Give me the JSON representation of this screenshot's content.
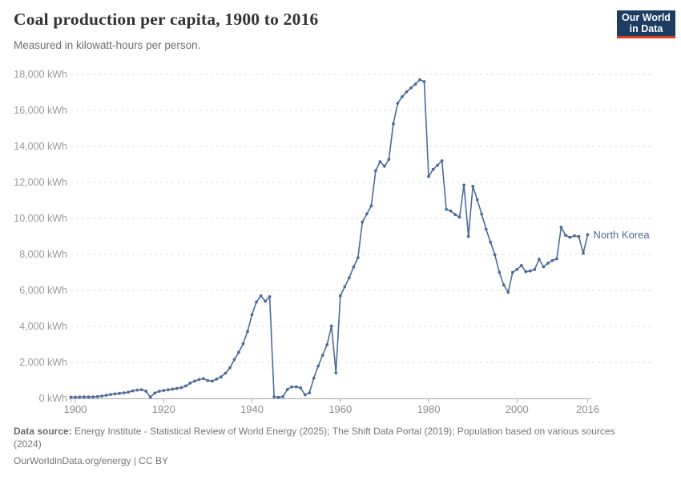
{
  "header": {
    "title": "Coal production per capita, 1900 to 2016",
    "subtitle": "Measured in kilowatt-hours per person.",
    "logo": {
      "line1": "Our World",
      "line2": "in Data",
      "bg": "#1d3d63",
      "accent": "#dc3e26"
    }
  },
  "chart_data": {
    "type": "line",
    "title": "Coal production per capita, 1900 to 2016",
    "subtitle": "Measured in kilowatt-hours per person.",
    "grid": "horizontal-dashed",
    "legend_position": "end-of-line-label",
    "end_label": "North Korea",
    "xlim": [
      1899,
      2016
    ],
    "ylim": [
      0,
      18000
    ],
    "x_ticks": [
      1900,
      1920,
      1940,
      1960,
      1980,
      2000,
      2016
    ],
    "y_ticks": [
      0,
      2000,
      4000,
      6000,
      8000,
      10000,
      12000,
      14000,
      16000,
      18000
    ],
    "y_suffix": " kWh",
    "xlabel": "",
    "ylabel": "",
    "series": [
      {
        "name": "North Korea",
        "color": "#4c6a9c",
        "x": [
          1899,
          1900,
          1901,
          1902,
          1903,
          1904,
          1905,
          1906,
          1907,
          1908,
          1909,
          1910,
          1911,
          1912,
          1913,
          1914,
          1915,
          1916,
          1917,
          1918,
          1919,
          1920,
          1921,
          1922,
          1923,
          1924,
          1925,
          1926,
          1927,
          1928,
          1929,
          1930,
          1931,
          1932,
          1933,
          1934,
          1935,
          1936,
          1937,
          1938,
          1939,
          1940,
          1941,
          1942,
          1943,
          1944,
          1945,
          1946,
          1947,
          1948,
          1949,
          1950,
          1951,
          1952,
          1953,
          1954,
          1955,
          1956,
          1957,
          1958,
          1959,
          1960,
          1961,
          1962,
          1963,
          1964,
          1965,
          1966,
          1967,
          1968,
          1969,
          1970,
          1971,
          1972,
          1973,
          1974,
          1975,
          1976,
          1977,
          1978,
          1979,
          1980,
          1981,
          1982,
          1983,
          1984,
          1985,
          1986,
          1987,
          1988,
          1989,
          1990,
          1991,
          1992,
          1993,
          1994,
          1995,
          1996,
          1997,
          1998,
          1999,
          2000,
          2001,
          2002,
          2003,
          2004,
          2005,
          2006,
          2007,
          2008,
          2009,
          2010,
          2011,
          2012,
          2013,
          2014,
          2015,
          2016
        ],
        "values": [
          70,
          70,
          75,
          78,
          80,
          85,
          100,
          130,
          175,
          220,
          250,
          280,
          310,
          345,
          420,
          460,
          485,
          400,
          75,
          300,
          400,
          440,
          475,
          515,
          555,
          600,
          690,
          850,
          960,
          1050,
          1100,
          985,
          960,
          1075,
          1190,
          1400,
          1700,
          2160,
          2560,
          3040,
          3720,
          4650,
          5350,
          5700,
          5400,
          5650,
          90,
          60,
          100,
          490,
          640,
          645,
          580,
          200,
          310,
          1130,
          1800,
          2400,
          2980,
          4020,
          1420,
          5700,
          6200,
          6700,
          7300,
          7820,
          9800,
          10250,
          10700,
          12650,
          13150,
          12900,
          13280,
          15250,
          16400,
          16760,
          17030,
          17250,
          17460,
          17700,
          17600,
          12330,
          12720,
          12950,
          13200,
          10500,
          10410,
          10215,
          10070,
          11850,
          9000,
          11780,
          11040,
          10240,
          9400,
          8680,
          7980,
          7010,
          6300,
          5900,
          7000,
          7160,
          7380,
          7040,
          7080,
          7160,
          7730,
          7310,
          7510,
          7660,
          7750,
          9510,
          9060,
          8950,
          9030,
          8990,
          8060,
          9100
        ]
      }
    ]
  },
  "footer": {
    "label": "Data source:",
    "text1": " Energy Institute - Statistical Review of World Energy (2025); The Shift Data Portal (2019); Population based on various sources",
    "text2": "(2024)",
    "link": "OurWorldinData.org/energy | CC BY"
  }
}
